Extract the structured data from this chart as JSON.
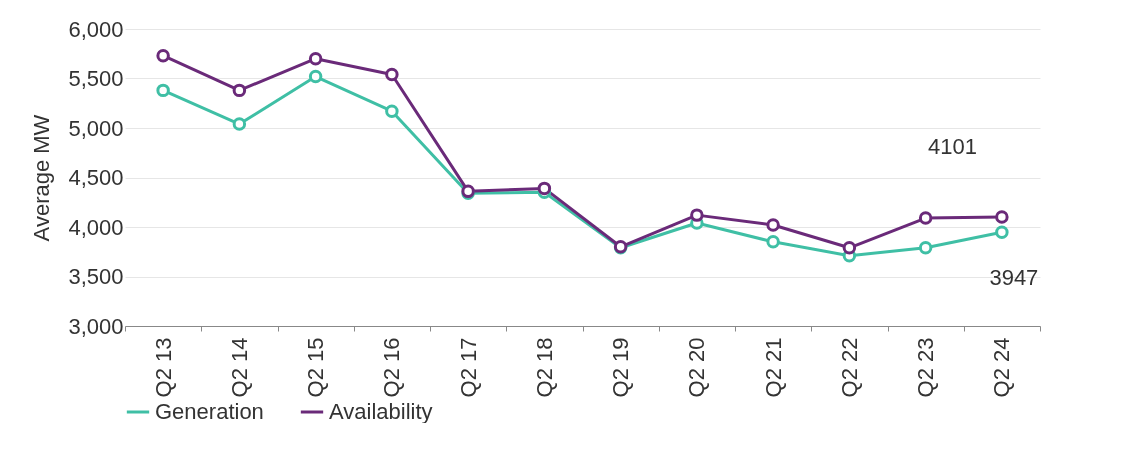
{
  "chart_data": {
    "type": "line",
    "ylabel": "Average MW",
    "categories": [
      "Q2 13",
      "Q2 14",
      "Q2 15",
      "Q2 16",
      "Q2 17",
      "Q2 18",
      "Q2 19",
      "Q2 20",
      "Q2 21",
      "Q2 22",
      "Q2 23",
      "Q2 24"
    ],
    "series": [
      {
        "name": "Generation",
        "color": "#3fbfa5",
        "values": [
          5380,
          5040,
          5520,
          5170,
          4340,
          4350,
          3790,
          4040,
          3850,
          3710,
          3790,
          3947
        ],
        "value_labels": [
          null,
          null,
          null,
          null,
          null,
          null,
          null,
          null,
          null,
          null,
          null,
          "3947"
        ]
      },
      {
        "name": "Availability",
        "color": "#6a2a79",
        "values": [
          5730,
          5380,
          5700,
          5540,
          4360,
          4390,
          3800,
          4120,
          4020,
          3790,
          4090,
          4101
        ],
        "value_labels": [
          null,
          null,
          null,
          null,
          null,
          null,
          null,
          null,
          null,
          null,
          null,
          "4101"
        ]
      }
    ],
    "ylim": [
      3000,
      6000
    ],
    "yticks": [
      {
        "value": 3000,
        "label": "3,000"
      },
      {
        "value": 3500,
        "label": "3,500"
      },
      {
        "value": 4000,
        "label": "4,000"
      },
      {
        "value": 4500,
        "label": "4,500"
      },
      {
        "value": 5000,
        "label": "5,000"
      },
      {
        "value": 5500,
        "label": "5,500"
      },
      {
        "value": 6000,
        "label": "6,000"
      }
    ],
    "grid": "y",
    "legend": "bottom",
    "marker": "circle",
    "line_style": "solid"
  }
}
